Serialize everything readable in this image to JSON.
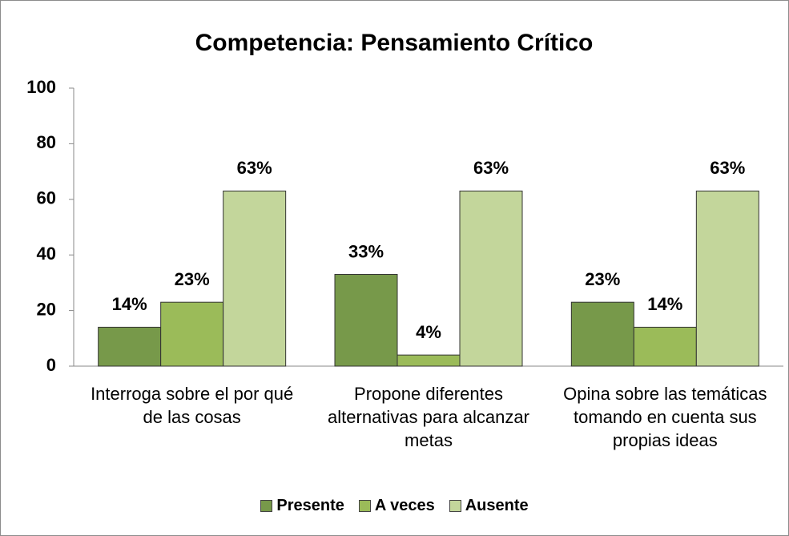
{
  "chart_data": {
    "type": "bar",
    "title": "Competencia: Pensamiento Crítico",
    "categories": [
      "Interroga sobre el por qué de las cosas",
      "Propone diferentes alternativas para alcanzar metas",
      "Opina sobre las temáticas tomando en cuenta sus propias ideas"
    ],
    "series": [
      {
        "name": "Presente",
        "color": "#77994a",
        "values": [
          14,
          33,
          23
        ],
        "value_labels": [
          "14%",
          "33%",
          "23%"
        ]
      },
      {
        "name": "A veces",
        "color": "#9bbb59",
        "values": [
          23,
          4,
          14
        ],
        "value_labels": [
          "23%",
          "4%",
          "14%"
        ]
      },
      {
        "name": "Ausente",
        "color": "#c3d69b",
        "values": [
          63,
          63,
          63
        ],
        "value_labels": [
          "63%",
          "63%",
          "63%"
        ]
      }
    ],
    "ylim": [
      0,
      100
    ],
    "yticks": [
      0,
      20,
      40,
      60,
      80,
      100
    ],
    "grid": false,
    "legend": "bottom"
  }
}
